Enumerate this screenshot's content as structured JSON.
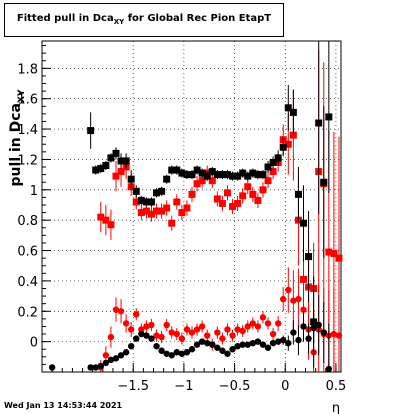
{
  "footer": {
    "timestamp": "Wed Jan 13 14:53:44 2021"
  },
  "chart_data": {
    "type": "scatter",
    "title": {
      "prefix": "Fitted pull in Dca",
      "sub": "XY",
      "suffix": " for Global Rec Pion EtapT"
    },
    "xlabel": "η",
    "ylabel": {
      "prefix": "pull in Dca",
      "sub": "XY"
    },
    "xlim": [
      -2.4,
      0.55
    ],
    "ylim": [
      -0.2,
      1.98
    ],
    "x_ticks": [
      -1.5,
      -1,
      -0.5,
      0,
      0.5
    ],
    "x_tick_labels": [
      "−1.5",
      "−1",
      "−0.5",
      "0",
      "0.5"
    ],
    "y_ticks": [
      0,
      0.2,
      0.4,
      0.6,
      0.8,
      1,
      1.2,
      1.4,
      1.6,
      1.8
    ],
    "y_tick_labels": [
      "0",
      "0.2",
      "0.4",
      "0.6",
      "0.8",
      "1",
      "1.2",
      "1.4",
      "1.6",
      "1.8"
    ],
    "grid": true,
    "colors": {
      "sigma_black": "#000000",
      "sigma_red": "#ff0000",
      "mean_black": "#000000",
      "mean_red": "#ff0000"
    },
    "series": [
      {
        "id": "sigma_black",
        "marker": "square",
        "x": [
          -2.3,
          -1.92,
          -1.87,
          -1.82,
          -1.77,
          -1.72,
          -1.67,
          -1.62,
          -1.57,
          -1.52,
          -1.47,
          -1.42,
          -1.37,
          -1.32,
          -1.27,
          -1.22,
          -1.17,
          -1.12,
          -1.07,
          -1.02,
          -0.97,
          -0.92,
          -0.87,
          -0.82,
          -0.77,
          -0.72,
          -0.67,
          -0.62,
          -0.57,
          -0.52,
          -0.47,
          -0.42,
          -0.37,
          -0.32,
          -0.27,
          -0.22,
          -0.17,
          -0.12,
          -0.07,
          -0.02,
          0.03,
          0.08,
          0.13,
          0.18,
          0.23,
          0.28,
          0.33,
          0.38,
          0.43
        ],
        "y": [
          null,
          1.39,
          1.13,
          1.14,
          1.16,
          1.21,
          1.24,
          1.19,
          1.19,
          1.07,
          0.99,
          0.93,
          0.92,
          0.92,
          0.98,
          0.99,
          1.07,
          1.13,
          1.13,
          1.11,
          1.1,
          1.1,
          1.13,
          1.11,
          1.09,
          1.12,
          1.1,
          1.1,
          1.1,
          1.09,
          1.09,
          1.11,
          1.09,
          1.11,
          1.1,
          1.1,
          1.15,
          1.18,
          1.21,
          1.28,
          1.54,
          1.51,
          0.97,
          0.78,
          0.56,
          0.13,
          1.44,
          1.05,
          1.48
        ],
        "err": [
          0,
          0.12,
          0.03,
          0.03,
          0.03,
          0.03,
          0.04,
          0.05,
          0.05,
          0.06,
          0.04,
          0.03,
          0.03,
          0.03,
          0.03,
          0.03,
          0.03,
          0.03,
          0.03,
          0.03,
          0.03,
          0.03,
          0.03,
          0.03,
          0.03,
          0.03,
          0.03,
          0.03,
          0.03,
          0.03,
          0.03,
          0.03,
          0.03,
          0.03,
          0.03,
          0.03,
          0.04,
          0.04,
          0.05,
          0.06,
          0.15,
          0.15,
          0.18,
          0.25,
          0.3,
          0.3,
          0.6,
          0.5,
          0.5
        ]
      },
      {
        "id": "sigma_red",
        "marker": "square",
        "x": [
          -1.82,
          -1.77,
          -1.72,
          -1.67,
          -1.62,
          -1.57,
          -1.52,
          -1.47,
          -1.42,
          -1.37,
          -1.32,
          -1.27,
          -1.22,
          -1.17,
          -1.12,
          -1.07,
          -1.02,
          -0.97,
          -0.92,
          -0.87,
          -0.82,
          -0.77,
          -0.72,
          -0.67,
          -0.62,
          -0.57,
          -0.52,
          -0.47,
          -0.42,
          -0.37,
          -0.32,
          -0.27,
          -0.22,
          -0.17,
          -0.12,
          -0.07,
          -0.02,
          0.03,
          0.08,
          0.13,
          0.18,
          0.23,
          0.28,
          0.33,
          0.38,
          0.43,
          0.48,
          0.53
        ],
        "y": [
          0.82,
          0.8,
          0.77,
          1.09,
          1.12,
          1.15,
          1.02,
          0.92,
          0.85,
          0.86,
          0.84,
          0.86,
          0.86,
          0.88,
          0.78,
          0.92,
          0.85,
          0.88,
          0.97,
          1.04,
          1.06,
          1.11,
          1.06,
          0.94,
          0.91,
          0.98,
          0.89,
          0.91,
          0.96,
          1.02,
          0.97,
          0.93,
          1.0,
          1.06,
          1.12,
          1.18,
          1.33,
          1.3,
          1.36,
          0.8,
          0.41,
          0.36,
          0.35,
          1.12,
          1.04,
          0.59,
          0.58,
          0.55
        ],
        "err": [
          0.1,
          0.1,
          0.1,
          0.1,
          0.1,
          0.08,
          0.06,
          0.05,
          0.05,
          0.05,
          0.05,
          0.05,
          0.05,
          0.05,
          0.05,
          0.05,
          0.05,
          0.05,
          0.05,
          0.05,
          0.05,
          0.05,
          0.05,
          0.05,
          0.05,
          0.05,
          0.05,
          0.05,
          0.05,
          0.05,
          0.05,
          0.05,
          0.05,
          0.05,
          0.05,
          0.06,
          0.1,
          0.2,
          0.3,
          0.3,
          0.3,
          0.3,
          0.3,
          0.8,
          0.8,
          0.8,
          0.8,
          0.8
        ]
      },
      {
        "id": "mean_black",
        "marker": "circle",
        "x": [
          -2.3,
          -1.92,
          -1.87,
          -1.82,
          -1.77,
          -1.72,
          -1.67,
          -1.62,
          -1.57,
          -1.52,
          -1.47,
          -1.42,
          -1.37,
          -1.32,
          -1.27,
          -1.22,
          -1.17,
          -1.12,
          -1.07,
          -1.02,
          -0.97,
          -0.92,
          -0.87,
          -0.82,
          -0.77,
          -0.72,
          -0.67,
          -0.62,
          -0.57,
          -0.52,
          -0.47,
          -0.42,
          -0.37,
          -0.32,
          -0.27,
          -0.22,
          -0.17,
          -0.12,
          -0.07,
          -0.02,
          0.03,
          0.08,
          0.13,
          0.18,
          0.23,
          0.28,
          0.33,
          0.38,
          0.43
        ],
        "y": [
          -0.17,
          -0.17,
          -0.17,
          -0.16,
          -0.14,
          -0.12,
          -0.11,
          -0.09,
          -0.07,
          -0.03,
          0.02,
          0.05,
          0.04,
          0.02,
          -0.03,
          -0.06,
          -0.08,
          -0.09,
          -0.07,
          -0.08,
          -0.07,
          -0.05,
          -0.02,
          0.0,
          -0.01,
          -0.02,
          -0.04,
          -0.06,
          -0.08,
          -0.05,
          -0.03,
          -0.02,
          -0.02,
          -0.01,
          0.0,
          -0.02,
          -0.04,
          -0.01,
          0.0,
          0.01,
          -0.01,
          0.06,
          0.01,
          0.1,
          0.02,
          0.09,
          0.11,
          0.06,
          -0.18
        ],
        "err": [
          0,
          0,
          0.02,
          0.01,
          0.01,
          0.01,
          0.01,
          0.01,
          0.01,
          0.02,
          0.02,
          0.02,
          0.02,
          0.02,
          0.02,
          0.02,
          0.02,
          0.02,
          0.02,
          0.02,
          0.02,
          0.02,
          0.02,
          0.02,
          0.02,
          0.02,
          0.02,
          0.02,
          0.02,
          0.02,
          0.02,
          0.02,
          0.02,
          0.02,
          0.02,
          0.02,
          0.02,
          0.02,
          0.02,
          0.03,
          0.05,
          0.08,
          0.1,
          0.1,
          0.1,
          0.1,
          0.2,
          0.2,
          0.3
        ]
      },
      {
        "id": "mean_red",
        "marker": "circle",
        "x": [
          -1.82,
          -1.77,
          -1.72,
          -1.67,
          -1.62,
          -1.57,
          -1.52,
          -1.47,
          -1.42,
          -1.37,
          -1.32,
          -1.27,
          -1.22,
          -1.17,
          -1.12,
          -1.07,
          -1.02,
          -0.97,
          -0.92,
          -0.87,
          -0.82,
          -0.77,
          -0.72,
          -0.67,
          -0.62,
          -0.57,
          -0.52,
          -0.47,
          -0.42,
          -0.37,
          -0.32,
          -0.27,
          -0.22,
          -0.17,
          -0.12,
          -0.07,
          -0.02,
          0.03,
          0.08,
          0.13,
          0.18,
          0.23,
          0.28,
          0.33,
          0.38,
          0.43,
          0.48,
          0.53
        ],
        "y": [
          -0.17,
          -0.09,
          0.03,
          0.21,
          0.2,
          0.12,
          0.08,
          0.18,
          0.08,
          0.1,
          0.11,
          0.04,
          0.03,
          0.11,
          0.06,
          0.05,
          0.02,
          0.08,
          0.06,
          0.08,
          0.1,
          0.04,
          -0.02,
          0.06,
          0.02,
          0.08,
          0.04,
          0.08,
          0.07,
          0.1,
          0.12,
          0.1,
          0.16,
          0.12,
          0.05,
          0.12,
          0.28,
          0.34,
          0.27,
          0.28,
          0.21,
          0.08,
          -0.07,
          0.08,
          0.05,
          0.04,
          0.05,
          0.04
        ],
        "err": [
          0.05,
          0.06,
          0.07,
          0.08,
          0.08,
          0.06,
          0.05,
          0.04,
          0.04,
          0.04,
          0.04,
          0.04,
          0.04,
          0.04,
          0.04,
          0.04,
          0.04,
          0.04,
          0.04,
          0.04,
          0.04,
          0.04,
          0.04,
          0.04,
          0.04,
          0.04,
          0.04,
          0.04,
          0.04,
          0.04,
          0.04,
          0.04,
          0.04,
          0.04,
          0.04,
          0.05,
          0.08,
          0.15,
          0.2,
          0.2,
          0.2,
          0.2,
          0.25,
          0.3,
          0.3,
          0.3,
          0.3,
          0.3
        ]
      }
    ]
  }
}
